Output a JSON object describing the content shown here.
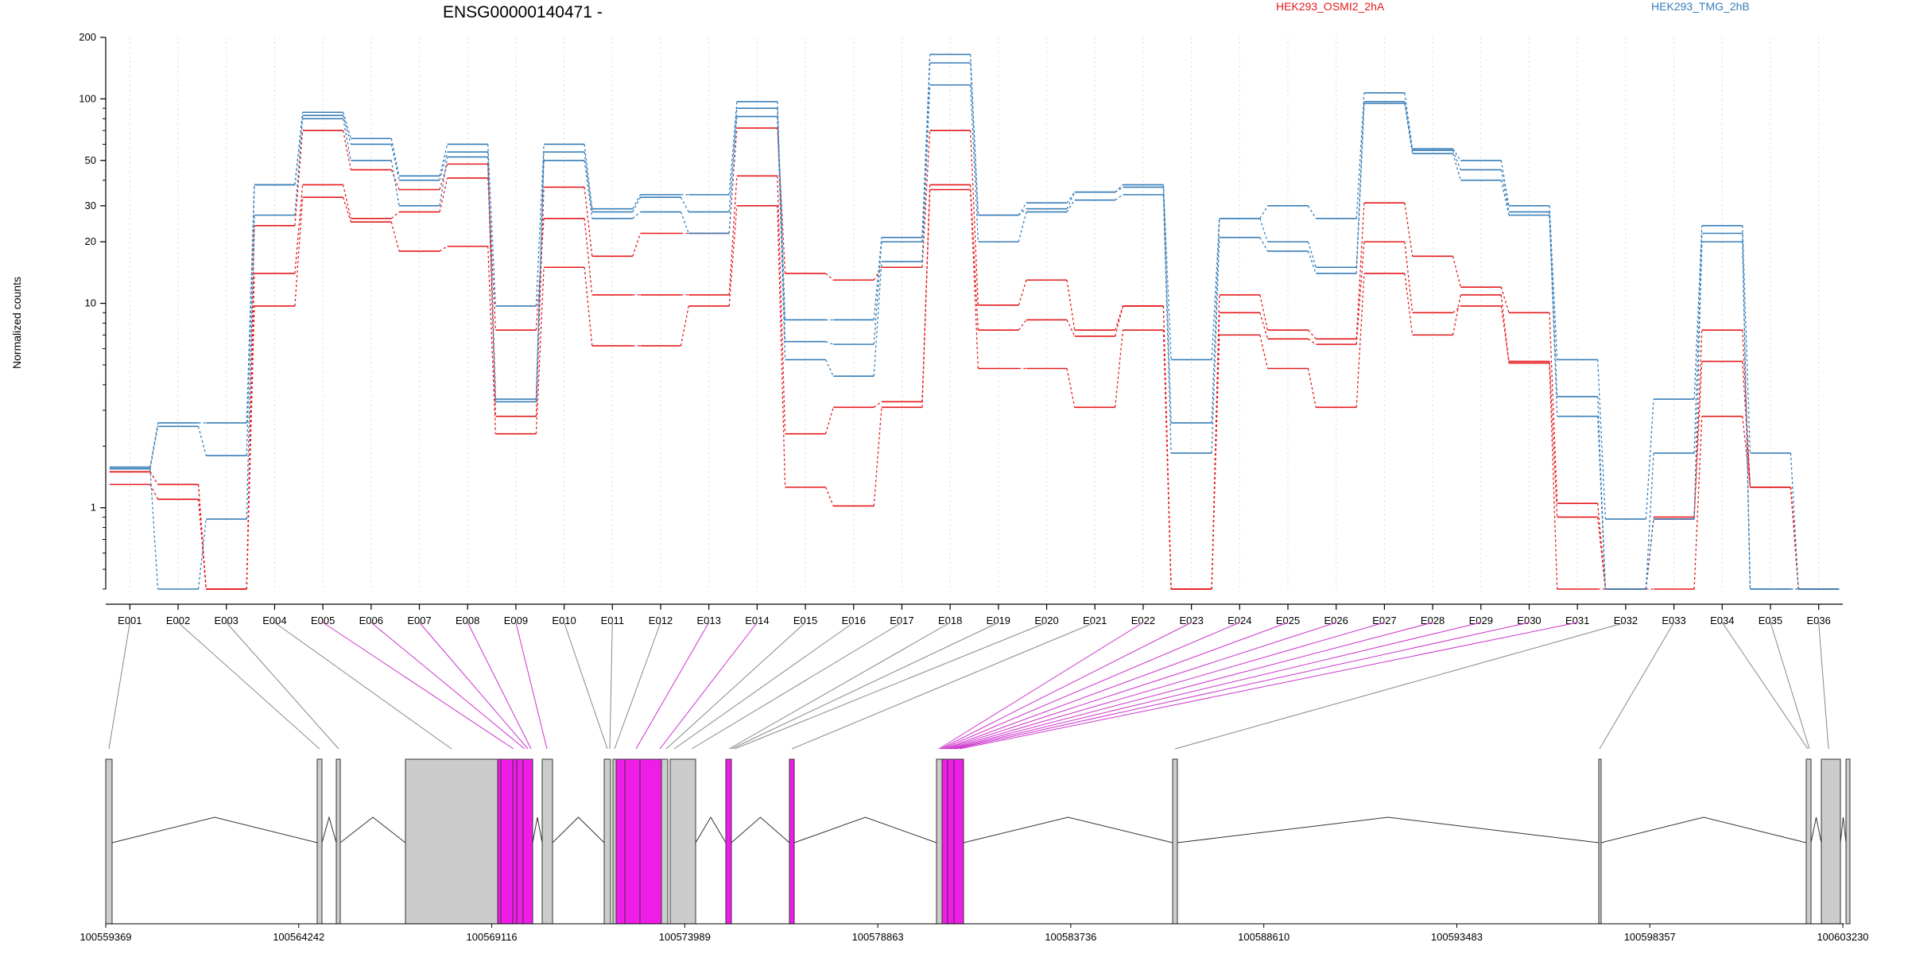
{
  "chart_data": {
    "type": "line",
    "title": "ENSG00000140471 -",
    "ylabel": "Normalized counts",
    "y_scale": "log",
    "ylim": [
      0.4,
      200
    ],
    "y_ticks": [
      1,
      10,
      20,
      30,
      50,
      100,
      200
    ],
    "grid": "vertical dotted",
    "legend_placement": "top",
    "categories": [
      "E001",
      "E002",
      "E003",
      "E004",
      "E005",
      "E006",
      "E007",
      "E008",
      "E009",
      "E010",
      "E011",
      "E012",
      "E013",
      "E014",
      "E015",
      "E016",
      "E017",
      "E018",
      "E019",
      "E020",
      "E021",
      "E022",
      "E023",
      "E024",
      "E025",
      "E026",
      "E027",
      "E028",
      "E029",
      "E030",
      "E031",
      "E032",
      "E033",
      "E034",
      "E035",
      "E036"
    ],
    "groups": [
      {
        "name": "HEK293_OSMI2_2hA",
        "color": "#e41a1c"
      },
      {
        "name": "HEK293_TMG_2hB",
        "color": "#377eb8"
      }
    ],
    "series": [
      {
        "group": "HEK293_OSMI2_2hA",
        "values": [
          1.3,
          1.1,
          0.4,
          24,
          70,
          45,
          36,
          48,
          2.8,
          37,
          17,
          22,
          22,
          72,
          14,
          13,
          15,
          70,
          9.8,
          13,
          7.4,
          9.7,
          0.4,
          11,
          7.4,
          6.7,
          31,
          17,
          12,
          9,
          1.05,
          0.4,
          0.88,
          7.4,
          1.26,
          0.4
        ]
      },
      {
        "group": "HEK293_OSMI2_2hA",
        "values": [
          1.5,
          1.3,
          0.4,
          14,
          38,
          26,
          28,
          41,
          7.4,
          26,
          11,
          11,
          11,
          42,
          2.3,
          3.1,
          3.3,
          38,
          7.4,
          8.3,
          6.9,
          9.7,
          0.4,
          9,
          6.7,
          6.3,
          20,
          9,
          9.7,
          5.2,
          0.9,
          0.4,
          0.9,
          5.2,
          1.26,
          0.4
        ]
      },
      {
        "group": "HEK293_OSMI2_2hA",
        "values": [
          1.5,
          1.3,
          0.4,
          9.7,
          33,
          25,
          18,
          19,
          2.3,
          15,
          6.2,
          6.2,
          9.7,
          30,
          1.26,
          1.02,
          3.1,
          36,
          4.8,
          4.8,
          3.1,
          7.4,
          0.4,
          7,
          4.8,
          3.1,
          14,
          7,
          11,
          5.1,
          0.4,
          0.4,
          0.4,
          2.8,
          1.26,
          0.4
        ]
      },
      {
        "group": "HEK293_TMG_2hB",
        "values": [
          1.58,
          2.6,
          2.6,
          38,
          86,
          64,
          42,
          60,
          9.7,
          60,
          29,
          34,
          34,
          97,
          8.3,
          8.3,
          21,
          165,
          27,
          31,
          35,
          38,
          5.3,
          26,
          30,
          26,
          107,
          57,
          50,
          30,
          5.3,
          0.88,
          3.4,
          24,
          1.85,
          0.4
        ]
      },
      {
        "group": "HEK293_TMG_2hB",
        "values": [
          1.55,
          2.5,
          1.8,
          38,
          83,
          60,
          40,
          55,
          3.4,
          55,
          28,
          33,
          28,
          90,
          6.5,
          6.3,
          20,
          150,
          27,
          29,
          35,
          37,
          2.6,
          26,
          20,
          15,
          97,
          56,
          45,
          28,
          3.5,
          0.4,
          1.85,
          22,
          0.4,
          0.4
        ]
      },
      {
        "group": "HEK293_TMG_2hB",
        "values": [
          1.55,
          0.4,
          0.88,
          27,
          80,
          50,
          30,
          52,
          3.3,
          50,
          26,
          28,
          22,
          82,
          5.3,
          4.4,
          16,
          117,
          20,
          28,
          32,
          34,
          1.85,
          21,
          18,
          14,
          95,
          54,
          40,
          27,
          2.8,
          0.4,
          0.88,
          20,
          0.4,
          0.4
        ]
      }
    ],
    "gene_axis_ticks": [
      "100559369",
      "100564242",
      "100569116",
      "100573989",
      "100578863",
      "100583736",
      "100588610",
      "100593483",
      "100598357",
      "100603230"
    ],
    "gene_range": [
      100559369,
      100603230
    ],
    "exon_color_highlight": "#f01de8",
    "exon_color_default": "#cccccc"
  }
}
